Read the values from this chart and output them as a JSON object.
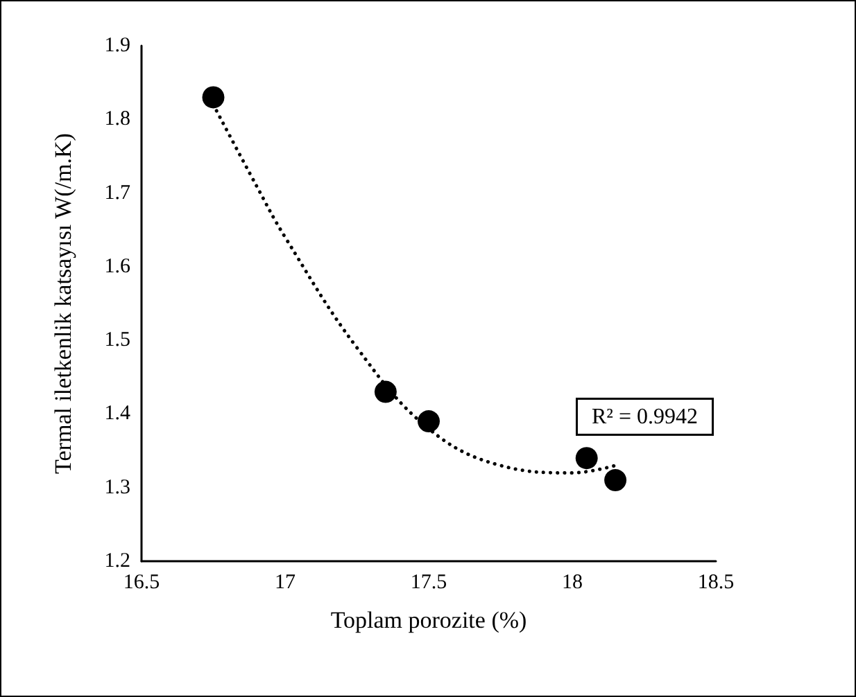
{
  "chart_data": {
    "type": "scatter",
    "xlabel": "Toplam porozite (%)",
    "ylabel": "Termal iletkenlik katsayısı W(/m.K)",
    "xlim": [
      16.5,
      18.5
    ],
    "xticks": [
      16.5,
      17,
      17.5,
      18,
      18.5
    ],
    "ylim": [
      1.2,
      1.9
    ],
    "yticks": [
      1.2,
      1.3,
      1.4,
      1.5,
      1.6,
      1.7,
      1.8,
      1.9
    ],
    "grid": false,
    "annotations": [
      "R² = 0.9942"
    ],
    "series": [
      {
        "color": "#000000",
        "marker": "circle",
        "x": [
          16.75,
          17.35,
          17.5,
          18.05,
          18.15
        ],
        "values": [
          1.83,
          1.43,
          1.39,
          1.34,
          1.31
        ]
      },
      {
        "type": "line",
        "color": "#000000",
        "marker": "none",
        "line_style": "dotted",
        "x": [
          16.75,
          16.9,
          17,
          17.25,
          17.5,
          17.75,
          18,
          18.15
        ],
        "values": [
          1.82,
          1.71,
          1.64,
          1.49,
          1.38,
          1.33,
          1.32,
          1.33
        ]
      }
    ]
  }
}
